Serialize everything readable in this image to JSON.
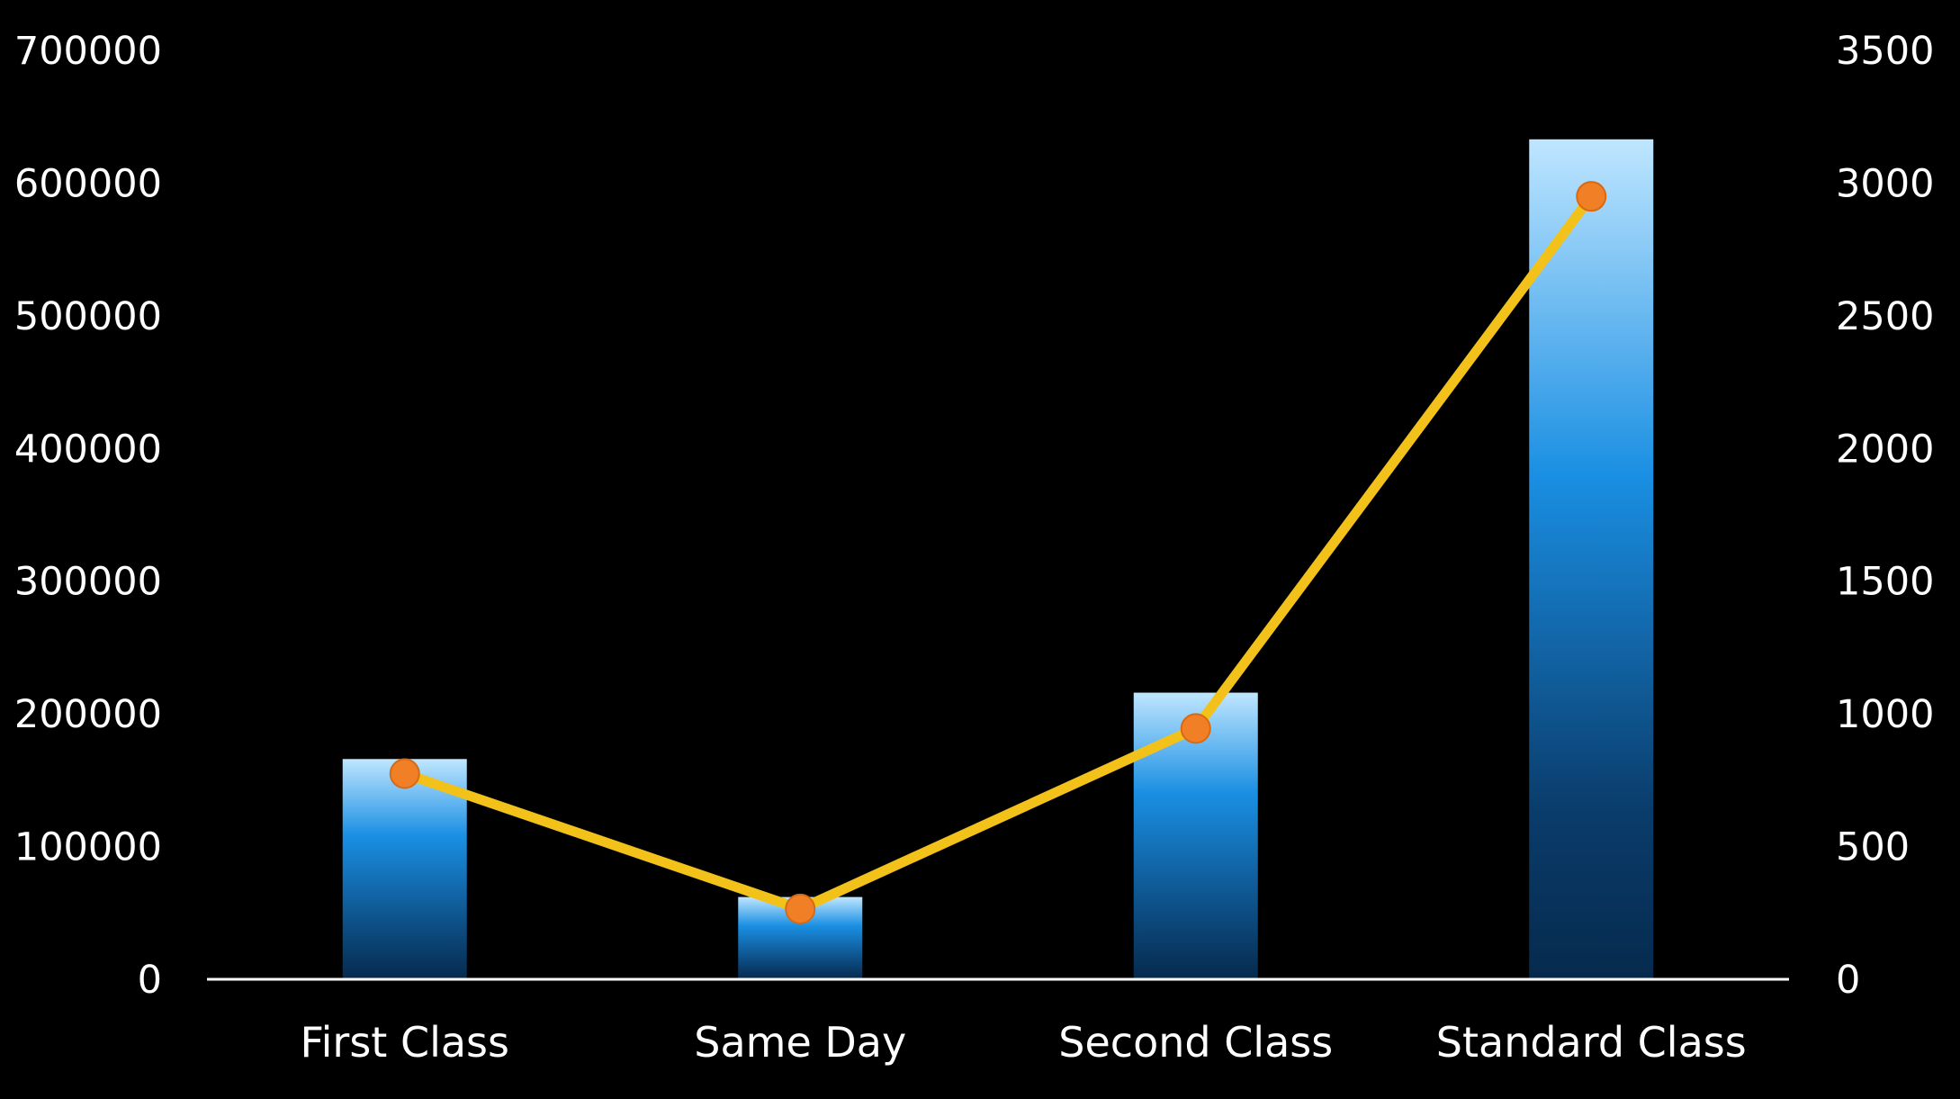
{
  "chart_data": {
    "type": "bar",
    "categories": [
      "First Class",
      "Same Day",
      "Second Class",
      "Standard Class"
    ],
    "series": [
      {
        "type": "bar",
        "axis": "left",
        "values": [
          166000,
          62000,
          216000,
          633000
        ]
      },
      {
        "type": "line",
        "axis": "right",
        "values": [
          775,
          265,
          945,
          2950
        ]
      }
    ],
    "y_left": {
      "range": [
        0,
        700000
      ],
      "ticks": [
        "0",
        "100000",
        "200000",
        "300000",
        "400000",
        "500000",
        "600000",
        "700000"
      ]
    },
    "y_right": {
      "range": [
        0,
        3500
      ],
      "ticks": [
        "0",
        "500",
        "1000",
        "1500",
        "2000",
        "2500",
        "3000",
        "3500"
      ]
    },
    "grid": false,
    "legend": "none",
    "colors": {
      "background": "#000000",
      "bar_top": "#bfe6ff",
      "bar_mid": "#1a8fe3",
      "bar_bottom": "#062a4d",
      "line": "#f2c11a",
      "marker": "#f07f26",
      "axis": "#ffffff",
      "text": "#ffffff"
    }
  }
}
